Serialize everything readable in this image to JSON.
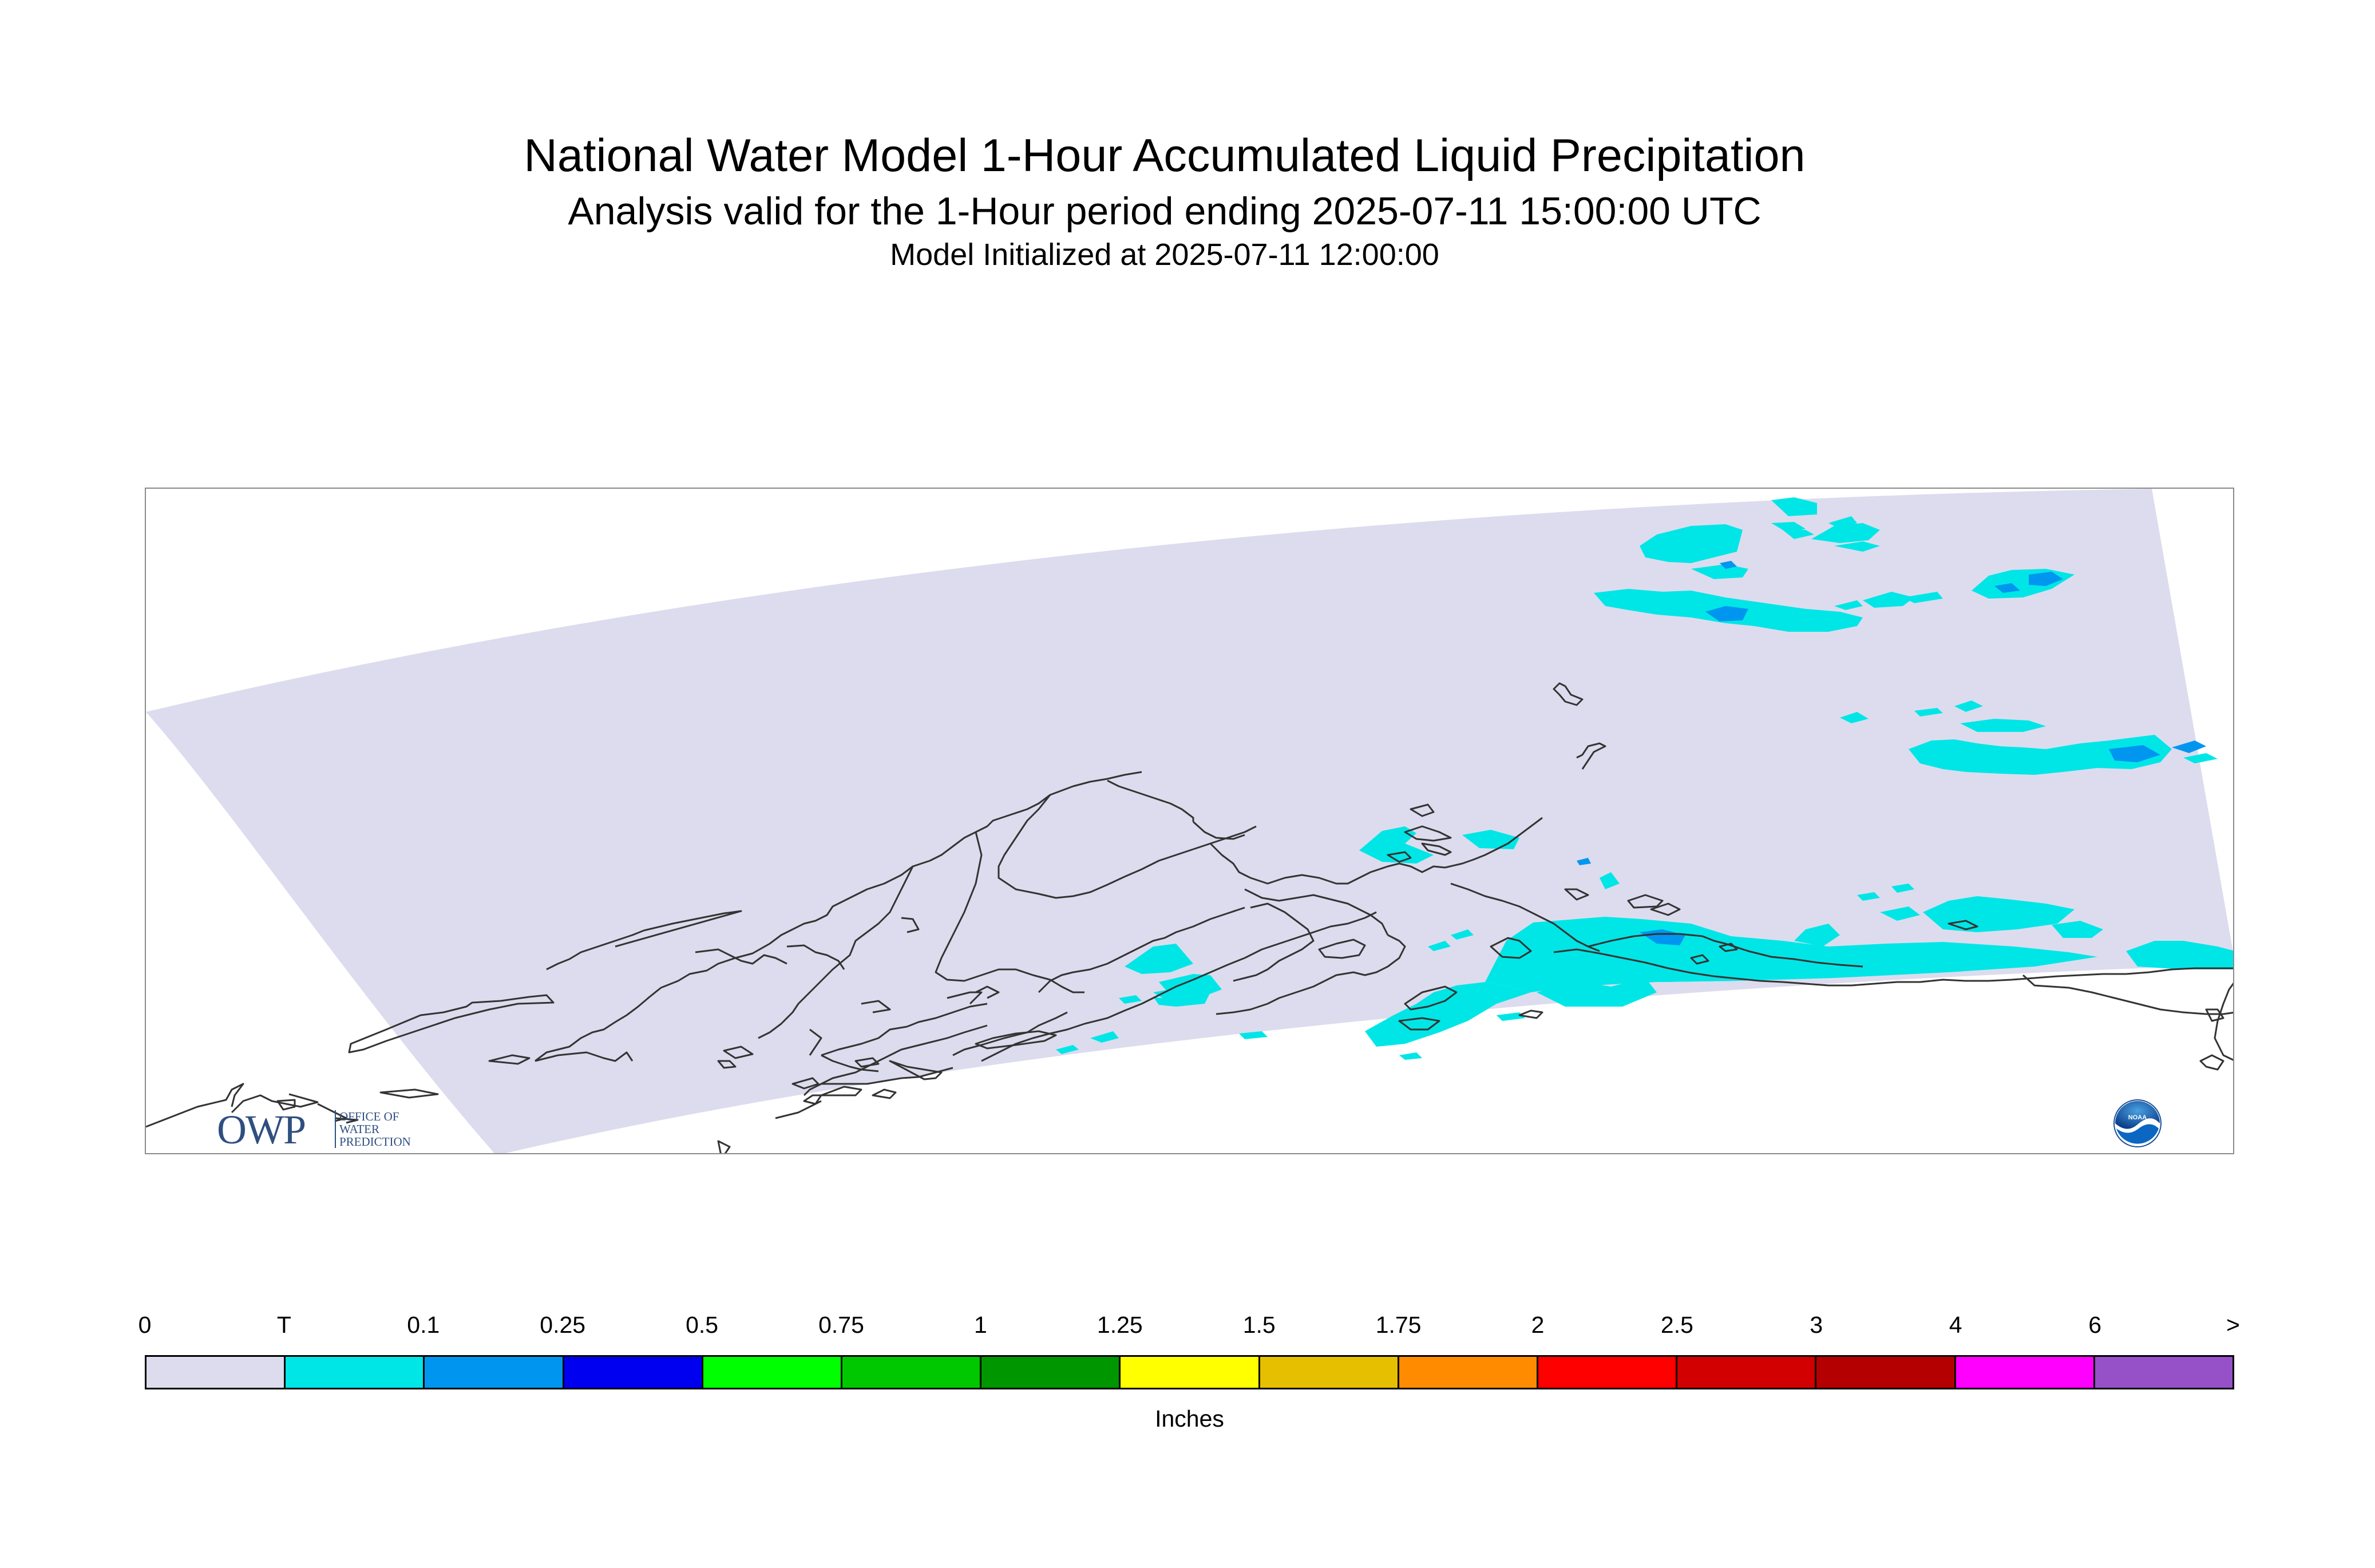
{
  "title": "National Water Model 1-Hour Accumulated Liquid Precipitation",
  "subtitle": "Analysis valid for the 1-Hour period ending 2025-07-11 15:00:00 UTC",
  "init_line": "Model Initialized at 2025-07-11 12:00:00",
  "logos": {
    "owp": {
      "letters": "OWP",
      "line1": "OFFICE OF",
      "line2": "WATER",
      "line3": "PREDICTION"
    },
    "noaa": {
      "text": "NOAA"
    }
  },
  "colors": {
    "background": "#ffffff",
    "domain": "#dcdcee",
    "coastline": "#333333",
    "frame": "#8a8a8a",
    "owp": "#2f4f7f"
  },
  "legend": {
    "ticks": [
      "0",
      "T",
      "0.1",
      "0.25",
      "0.5",
      "0.75",
      "1",
      "1.25",
      "1.5",
      "1.75",
      "2",
      "2.5",
      "3",
      "4",
      "6",
      ">"
    ],
    "colors": [
      "#dcdcee",
      "#00e6e6",
      "#0096f0",
      "#0000f0",
      "#00ff00",
      "#00c800",
      "#009600",
      "#ffff00",
      "#e6c000",
      "#ff8c00",
      "#ff0000",
      "#d20000",
      "#b40000",
      "#ff00ff",
      "#9650c8"
    ],
    "units": "Inches"
  }
}
